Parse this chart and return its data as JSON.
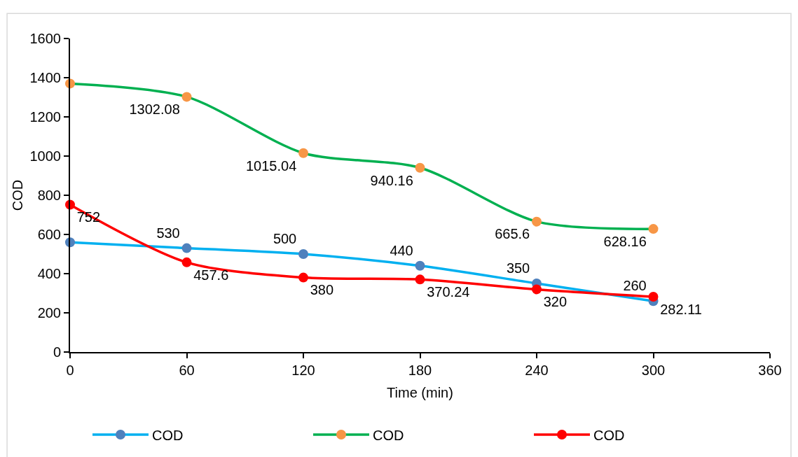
{
  "chart_data": {
    "type": "line",
    "xlabel": "Time (min)",
    "ylabel": "COD",
    "x": [
      0,
      60,
      120,
      180,
      240,
      300
    ],
    "xlim": [
      0,
      360
    ],
    "xticks": [
      0,
      60,
      120,
      180,
      240,
      300,
      360
    ],
    "ylim": [
      0,
      1600
    ],
    "yticks": [
      0,
      200,
      400,
      600,
      800,
      1000,
      1200,
      1400,
      1600
    ],
    "series": [
      {
        "name": "COD",
        "color": "#00b0f0",
        "colors": [
          "#4f81bd",
          "#4f81bd",
          "#4f81bd",
          "#4f81bd",
          "#4f81bd",
          "#4f81bd"
        ],
        "values": [
          560,
          530,
          500,
          440,
          350,
          260
        ],
        "value_labels": [
          null,
          "530",
          "500",
          "440",
          "350",
          "260"
        ]
      },
      {
        "name": "COD",
        "color": "#00b050",
        "colors": [
          "#f79646",
          "#f79646",
          "#f79646",
          "#f79646",
          "#f79646",
          "#f79646"
        ],
        "values": [
          1370,
          1302.08,
          1015.04,
          940.16,
          665.6,
          628.16
        ],
        "value_labels": [
          null,
          "1302.08",
          "1015.04",
          "940.16",
          "665.6",
          "628.16"
        ]
      },
      {
        "name": "COD",
        "color": "#ff0000",
        "colors": [
          "#ff0000",
          "#ff0000",
          "#ff0000",
          "#ff0000",
          "#ff0000",
          "#ff0000"
        ],
        "values": [
          752,
          457.6,
          380,
          370.24,
          320,
          282.11
        ],
        "value_labels": [
          "752",
          "457.6",
          "380",
          "370.24",
          "320",
          "282.11"
        ]
      }
    ],
    "marker": "circle",
    "line_style": "solid",
    "legend": "bottom"
  }
}
